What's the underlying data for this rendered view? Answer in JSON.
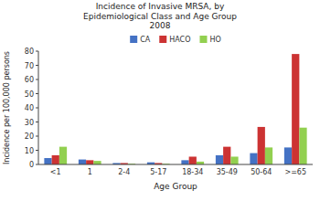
{
  "chart_data": {
    "type": "bar",
    "title": "Incidence of Invasive MRSA, by\nEpidemiological Class and Age Group\n2008",
    "x_label": "Age Group",
    "y_label": "Incidence per 100,000 persons",
    "categories": [
      "<1",
      "1",
      "2-4",
      "5-17",
      "18-34",
      "35-49",
      "50-64",
      ">=65"
    ],
    "series": [
      {
        "name": "CA",
        "color": "#4472C4",
        "values": [
          4.5,
          3.5,
          1.0,
          1.5,
          3.0,
          6.5,
          8.0,
          12.0
        ]
      },
      {
        "name": "HACO",
        "color": "#CC3333",
        "values": [
          6.5,
          3.0,
          1.0,
          1.0,
          5.5,
          12.5,
          26.5,
          78.0
        ]
      },
      {
        "name": "HO",
        "color": "#92D050",
        "values": [
          12.5,
          2.5,
          0.5,
          0.5,
          2.0,
          5.5,
          12.0,
          26.0
        ]
      }
    ],
    "ylim": [
      0,
      80
    ],
    "yticks": [
      0,
      10,
      20,
      30,
      40,
      50,
      60,
      70,
      80
    ],
    "grid": false,
    "legend": "top"
  }
}
